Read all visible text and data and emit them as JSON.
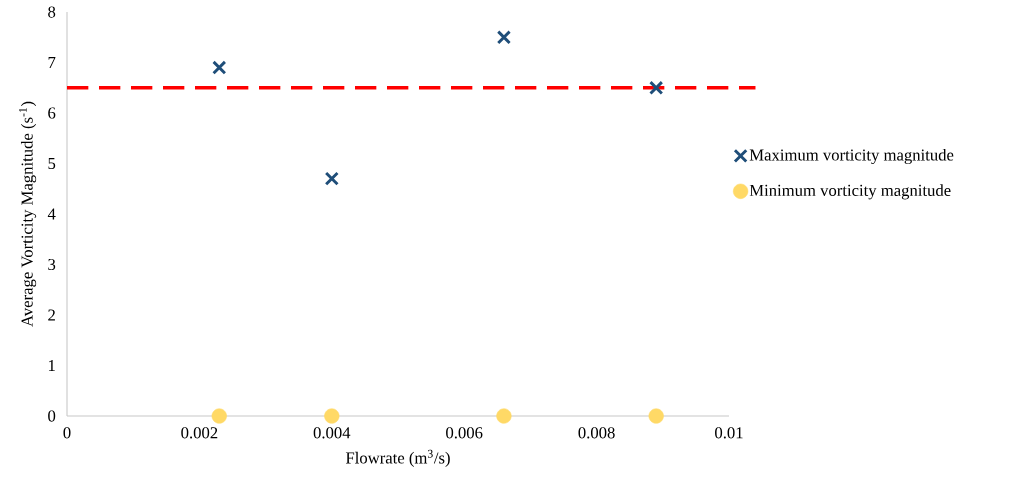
{
  "chart_data": {
    "type": "scatter",
    "xlabel": "Flowrate (m$^{3}$/s)",
    "ylabel": "Average Vorticity Magnitude (s$^{-1}$)",
    "xlim": [
      0,
      0.01
    ],
    "xticks": [
      0,
      0.002,
      0.004,
      0.006,
      0.008,
      0.01
    ],
    "ylim": [
      0,
      8
    ],
    "yticks": [
      0,
      1,
      2,
      3,
      4,
      5,
      6,
      7,
      8
    ],
    "x": [
      0.0023,
      0.004,
      0.0066,
      0.0089
    ],
    "series": [
      {
        "name": "Maximum vorticity magnitude",
        "color": "#1f4e79",
        "marker": "cross",
        "values": [
          6.9,
          4.7,
          7.5,
          6.5
        ]
      },
      {
        "name": "Minimum vorticity magnitude",
        "color": "#ffd966",
        "marker": "circle",
        "values": [
          0,
          0,
          0,
          0
        ]
      }
    ],
    "ref_lines": [
      {
        "axis": "y",
        "value": 6.5,
        "color": "#ff0000",
        "line_style": "dashed"
      }
    ],
    "grid": false,
    "legend": "right"
  }
}
